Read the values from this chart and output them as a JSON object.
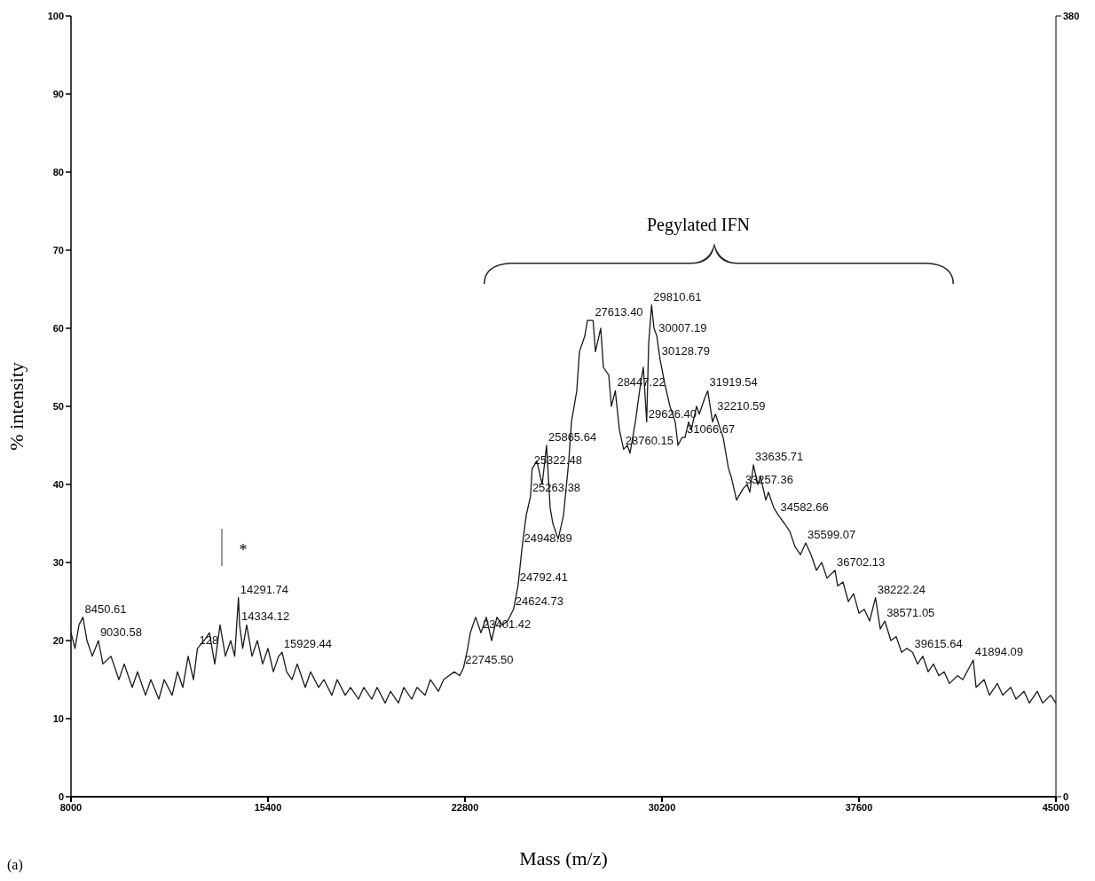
{
  "chart_data": {
    "type": "line",
    "xlabel": "Mass (m/z)",
    "ylabel": "% intensity",
    "xlim": [
      8000,
      45000
    ],
    "xticks": [
      8000,
      15400,
      22800,
      30200,
      37600,
      45000
    ],
    "ylim": [
      0,
      100
    ],
    "yticks": [
      0,
      10,
      20,
      30,
      40,
      50,
      60,
      70,
      80,
      90,
      100
    ],
    "y2lim": [
      0,
      380
    ],
    "y2ticks": [
      0,
      380
    ],
    "grid": false,
    "legend": false,
    "marker": "none",
    "line_style": "solid",
    "series": [
      {
        "color": "#1a1a1a",
        "x": [
          8000,
          8150,
          8300,
          8450,
          8600,
          8800,
          9030,
          9200,
          9500,
          9800,
          10000,
          10300,
          10500,
          10800,
          11000,
          11300,
          11500,
          11800,
          12000,
          12200,
          12400,
          12600,
          12750,
          13000,
          13200,
          13400,
          13600,
          13800,
          14000,
          14150,
          14291,
          14334,
          14450,
          14600,
          14800,
          15000,
          15200,
          15400,
          15600,
          15800,
          15929,
          16100,
          16300,
          16500,
          16800,
          17000,
          17300,
          17500,
          17800,
          18000,
          18300,
          18500,
          18800,
          19000,
          19300,
          19500,
          19800,
          20000,
          20300,
          20500,
          20800,
          21000,
          21300,
          21500,
          21800,
          22000,
          22200,
          22400,
          22600,
          22745,
          22900,
          23000,
          23200,
          23401,
          23600,
          23800,
          24000,
          24200,
          24400,
          24624,
          24792,
          24948,
          25100,
          25263,
          25322,
          25500,
          25700,
          25865,
          26000,
          26100,
          26300,
          26500,
          26700,
          26800,
          27000,
          27100,
          27300,
          27400,
          27613,
          27700,
          27900,
          28000,
          28200,
          28300,
          28447,
          28600,
          28760,
          28900,
          29000,
          29200,
          29400,
          29500,
          29626,
          29700,
          29810,
          29900,
          30007,
          30128,
          30300,
          30500,
          30700,
          30800,
          30950,
          31066,
          31200,
          31300,
          31500,
          31600,
          31800,
          31919,
          32100,
          32210,
          32400,
          32500,
          32700,
          32800,
          33000,
          33257,
          33400,
          33500,
          33635,
          33800,
          33900,
          34100,
          34200,
          34400,
          34582,
          34800,
          35000,
          35200,
          35400,
          35599,
          35800,
          36000,
          36200,
          36400,
          36702,
          36800,
          37000,
          37200,
          37400,
          37600,
          37800,
          38000,
          38222,
          38400,
          38571,
          38800,
          39000,
          39200,
          39400,
          39615,
          39800,
          40000,
          40200,
          40400,
          40600,
          40800,
          41000,
          41300,
          41500,
          41894,
          42000,
          42300,
          42500,
          42800,
          43000,
          43300,
          43500,
          43800,
          44000,
          44300,
          44500,
          44800,
          45000
        ],
        "values": [
          21,
          19,
          22,
          23,
          20,
          18,
          20,
          17,
          18,
          15,
          17,
          14,
          16,
          13,
          15,
          12.5,
          15,
          13,
          16,
          14,
          18,
          15,
          19,
          20,
          21,
          17,
          22,
          18,
          20,
          18,
          25.5,
          22,
          19,
          22,
          18,
          20,
          17,
          19,
          16,
          18,
          18.5,
          16,
          15,
          17,
          14,
          16,
          14,
          15,
          13,
          15,
          13,
          14,
          12.5,
          14,
          12.5,
          14,
          12,
          13.5,
          12,
          14,
          12.5,
          14,
          13,
          15,
          13.5,
          15,
          15.5,
          16,
          15.5,
          16.5,
          19,
          21,
          23,
          21,
          23,
          20,
          23,
          22,
          22.5,
          24,
          27,
          32,
          36,
          38.5,
          42,
          43,
          40,
          45,
          37,
          35,
          33,
          36,
          43,
          48,
          52,
          57,
          59,
          61,
          61,
          57,
          60,
          55,
          54,
          50,
          52,
          47,
          44.5,
          45,
          44,
          48,
          53,
          55,
          48,
          58,
          63,
          60,
          59,
          56,
          53,
          50,
          48,
          45,
          46,
          46,
          48,
          47,
          50,
          49,
          51,
          52,
          48,
          49,
          47,
          46,
          42,
          41,
          38,
          39.5,
          40,
          39,
          42.5,
          40,
          41,
          38,
          39,
          37,
          36,
          35,
          34,
          32,
          31,
          32.5,
          31,
          29,
          30,
          28,
          29,
          27,
          27.5,
          25,
          26,
          23.5,
          24,
          22.5,
          25.5,
          21.5,
          22.5,
          20,
          20.5,
          18.5,
          19,
          18.5,
          17,
          18,
          16,
          17,
          15.5,
          16,
          14.5,
          15.5,
          15,
          17.5,
          14,
          15,
          13,
          14.5,
          13,
          14,
          12.5,
          13.5,
          12,
          13.5,
          12,
          13,
          12
        ]
      }
    ],
    "annotations": [
      "Pegylated IFN",
      "*",
      {
        "text": "8450.61",
        "x": 8450,
        "y": 23
      },
      {
        "text": "9030.58",
        "x": 9030,
        "y": 20
      },
      {
        "text": "128",
        "x": 12750,
        "y": 19
      },
      {
        "text": "14291.74",
        "x": 14291,
        "y": 25.5
      },
      {
        "text": "14334.12",
        "x": 14334,
        "y": 22
      },
      {
        "text": "15929.44",
        "x": 15929,
        "y": 18.5
      },
      {
        "text": "22745.50",
        "x": 22745,
        "y": 16.5
      },
      {
        "text": "23401.42",
        "x": 23401,
        "y": 21
      },
      {
        "text": "24624.73",
        "x": 24624,
        "y": 24
      },
      {
        "text": "24792.41",
        "x": 24792,
        "y": 27
      },
      {
        "text": "24948.89",
        "x": 24948,
        "y": 32
      },
      {
        "text": "25263.38",
        "x": 25263,
        "y": 38.5
      },
      {
        "text": "25322.48",
        "x": 25322,
        "y": 42
      },
      {
        "text": "25865.64",
        "x": 25865,
        "y": 45
      },
      {
        "text": "27613.40",
        "x": 27613,
        "y": 61
      },
      {
        "text": "29810.61",
        "x": 29810,
        "y": 63
      },
      {
        "text": "30007.19",
        "x": 30007,
        "y": 59
      },
      {
        "text": "30128.79",
        "x": 30128,
        "y": 56
      },
      {
        "text": "28447.22",
        "x": 28447,
        "y": 52
      },
      {
        "text": "29626.40",
        "x": 29626,
        "y": 48
      },
      {
        "text": "28760.15",
        "x": 28760,
        "y": 44.5
      },
      {
        "text": "31919.54",
        "x": 31919,
        "y": 52
      },
      {
        "text": "32210.59",
        "x": 32210,
        "y": 49
      },
      {
        "text": "31066.67",
        "x": 31066,
        "y": 46
      },
      {
        "text": "33635.71",
        "x": 33635,
        "y": 42.5
      },
      {
        "text": "33257.36",
        "x": 33257,
        "y": 39.5
      },
      {
        "text": "34582.66",
        "x": 34582,
        "y": 36
      },
      {
        "text": "35599.07",
        "x": 35599,
        "y": 32.5
      },
      {
        "text": "36702.13",
        "x": 36702,
        "y": 29
      },
      {
        "text": "38222.24",
        "x": 38222,
        "y": 25.5
      },
      {
        "text": "38571.05",
        "x": 38571,
        "y": 22.5
      },
      {
        "text": "39615.64",
        "x": 39615,
        "y": 18.5
      },
      {
        "text": "41894.09",
        "x": 41894,
        "y": 17.5
      },
      "(a)"
    ]
  }
}
